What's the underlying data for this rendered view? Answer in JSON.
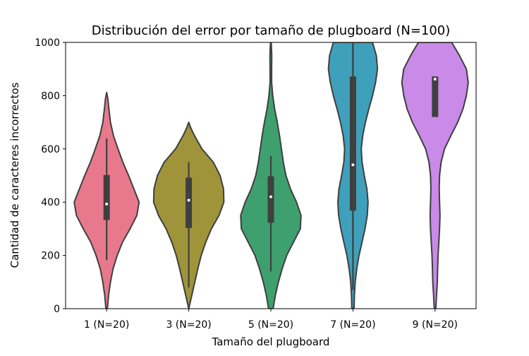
{
  "chart_data": {
    "type": "violin",
    "title": "Distribución del error por tamaño de plugboard (N=100)",
    "xlabel": "Tamaño del plugboard",
    "ylabel": "Cantidad de caracteres incorrectos",
    "ylim": [
      0,
      1000
    ],
    "yticks": [
      0,
      200,
      400,
      600,
      800,
      1000
    ],
    "grid": false,
    "categories": [
      "1 (N=20)",
      "3 (N=20)",
      "5 (N=20)",
      "7 (N=20)",
      "9 (N=20)"
    ],
    "colors": [
      "#e8798c",
      "#a0943a",
      "#3ea06f",
      "#3fa0bb",
      "#c98ae8"
    ],
    "violins": [
      {
        "category": "1 (N=20)",
        "median": 393,
        "q1": 333,
        "q3": 502,
        "whisker_low": 182,
        "whisker_high": 639,
        "profile": [
          [
            0,
            0.02
          ],
          [
            50,
            0.05
          ],
          [
            100,
            0.1
          ],
          [
            150,
            0.17
          ],
          [
            200,
            0.28
          ],
          [
            250,
            0.42
          ],
          [
            300,
            0.62
          ],
          [
            350,
            0.8
          ],
          [
            400,
            0.86
          ],
          [
            450,
            0.72
          ],
          [
            500,
            0.58
          ],
          [
            550,
            0.43
          ],
          [
            600,
            0.3
          ],
          [
            650,
            0.18
          ],
          [
            700,
            0.1
          ],
          [
            750,
            0.06
          ],
          [
            790,
            0.03
          ],
          [
            812,
            0
          ]
        ]
      },
      {
        "category": "3 (N=20)",
        "median": 407,
        "q1": 303,
        "q3": 492,
        "whisker_low": 80,
        "whisker_high": 550,
        "profile": [
          [
            0,
            0.0
          ],
          [
            50,
            0.08
          ],
          [
            100,
            0.16
          ],
          [
            150,
            0.24
          ],
          [
            200,
            0.33
          ],
          [
            250,
            0.45
          ],
          [
            300,
            0.6
          ],
          [
            350,
            0.8
          ],
          [
            400,
            0.93
          ],
          [
            450,
            0.92
          ],
          [
            500,
            0.83
          ],
          [
            550,
            0.65
          ],
          [
            600,
            0.35
          ],
          [
            650,
            0.15
          ],
          [
            680,
            0.05
          ],
          [
            700,
            0
          ]
        ]
      },
      {
        "category": "5 (N=20)",
        "median": 420,
        "q1": 323,
        "q3": 497,
        "whisker_low": 140,
        "whisker_high": 573,
        "profile": [
          [
            0,
            0.06
          ],
          [
            50,
            0.12
          ],
          [
            100,
            0.2
          ],
          [
            150,
            0.3
          ],
          [
            200,
            0.42
          ],
          [
            250,
            0.6
          ],
          [
            300,
            0.78
          ],
          [
            350,
            0.8
          ],
          [
            400,
            0.68
          ],
          [
            450,
            0.52
          ],
          [
            500,
            0.4
          ],
          [
            550,
            0.33
          ],
          [
            600,
            0.28
          ],
          [
            650,
            0.23
          ],
          [
            700,
            0.17
          ],
          [
            750,
            0.1
          ],
          [
            800,
            0.05
          ],
          [
            850,
            0.02
          ],
          [
            900,
            0.02
          ],
          [
            950,
            0.025
          ],
          [
            1000,
            0.01
          ]
        ]
      },
      {
        "category": "7 (N=20)",
        "median": 540,
        "q1": 368,
        "q3": 872,
        "whisker_low": 70,
        "whisker_high": 1000,
        "profile": [
          [
            0,
            0.03
          ],
          [
            50,
            0.04
          ],
          [
            100,
            0.06
          ],
          [
            150,
            0.1
          ],
          [
            200,
            0.16
          ],
          [
            250,
            0.24
          ],
          [
            300,
            0.32
          ],
          [
            350,
            0.38
          ],
          [
            400,
            0.4
          ],
          [
            450,
            0.37
          ],
          [
            500,
            0.3
          ],
          [
            550,
            0.24
          ],
          [
            600,
            0.22
          ],
          [
            650,
            0.26
          ],
          [
            700,
            0.33
          ],
          [
            750,
            0.42
          ],
          [
            800,
            0.52
          ],
          [
            850,
            0.6
          ],
          [
            900,
            0.65
          ],
          [
            950,
            0.62
          ],
          [
            1000,
            0.52
          ]
        ]
      },
      {
        "category": "9 (N=20)",
        "median": 862,
        "q1": 720,
        "q3": 872,
        "whisker_low": 720,
        "whisker_high": 872,
        "profile": [
          [
            0,
            0.02
          ],
          [
            50,
            0.04
          ],
          [
            100,
            0.06
          ],
          [
            150,
            0.07
          ],
          [
            200,
            0.08
          ],
          [
            250,
            0.1
          ],
          [
            300,
            0.12
          ],
          [
            350,
            0.13
          ],
          [
            400,
            0.12
          ],
          [
            450,
            0.11
          ],
          [
            500,
            0.12
          ],
          [
            550,
            0.16
          ],
          [
            600,
            0.25
          ],
          [
            650,
            0.42
          ],
          [
            700,
            0.6
          ],
          [
            750,
            0.74
          ],
          [
            800,
            0.83
          ],
          [
            850,
            0.88
          ],
          [
            900,
            0.83
          ],
          [
            950,
            0.65
          ],
          [
            1000,
            0.44
          ]
        ]
      }
    ]
  }
}
